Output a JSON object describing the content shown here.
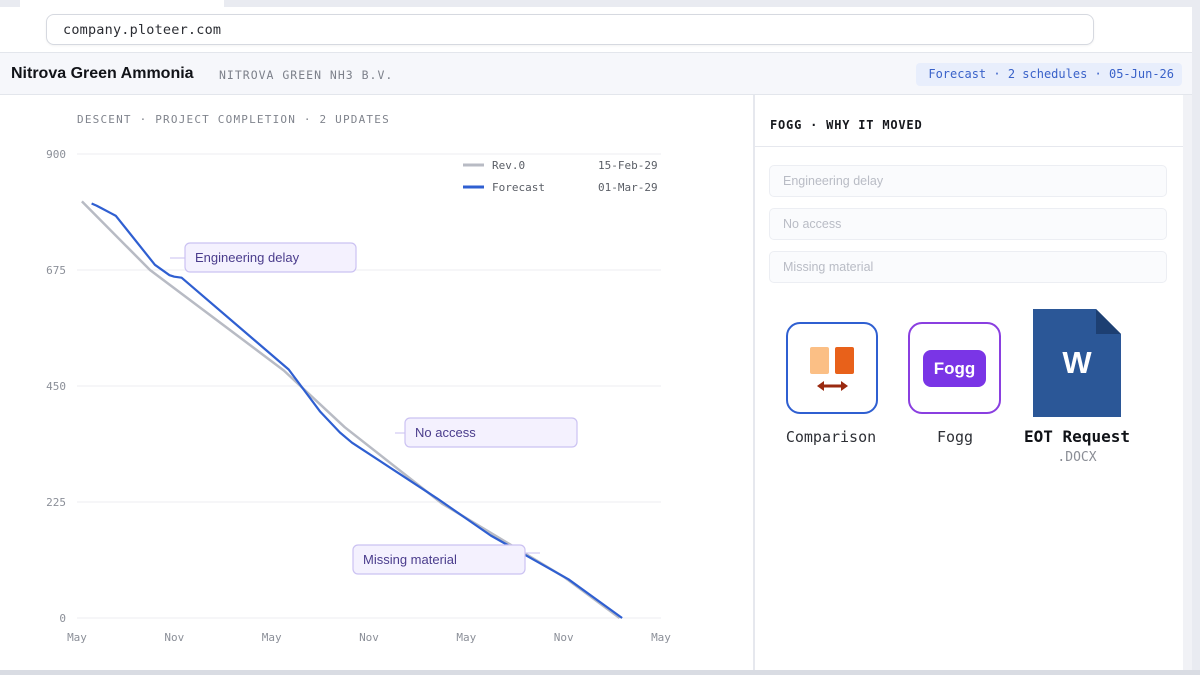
{
  "browser": {
    "url": "company.ploteer.com"
  },
  "header": {
    "title": "Nitrova Green Ammonia",
    "subtitle": "NITROVA GREEN NH3 B.V.",
    "status": "Forecast · 2 schedules · 05-Jun-26"
  },
  "chart_data": {
    "type": "line",
    "title": "DESCENT · PROJECT COMPLETION · 2 UPDATES",
    "ylim": [
      0,
      900
    ],
    "yticks": [
      "900",
      "675",
      "450",
      "225",
      "0"
    ],
    "xticks": [
      "May",
      "Nov",
      "May",
      "Nov",
      "May",
      "Nov",
      "May"
    ],
    "grid": true,
    "legend_position": "top-right",
    "legend": [
      {
        "name": "Rev.0",
        "date": "15-Feb-29",
        "color": "#b8bbc4"
      },
      {
        "name": "Forecast",
        "date": "01-Mar-29",
        "color": "#2f5fd1"
      }
    ],
    "series": [
      {
        "name": "Rev.0",
        "color": "#b8bbc4",
        "points": [
          [
            0.2,
            808
          ],
          [
            3.0,
            675
          ],
          [
            8.5,
            480
          ],
          [
            11.0,
            370
          ],
          [
            15.0,
            222
          ],
          [
            20.0,
            80
          ],
          [
            22.3,
            0
          ]
        ]
      },
      {
        "name": "Forecast",
        "color": "#2f5fd1",
        "points": [
          [
            0.6,
            804
          ],
          [
            0.8,
            800
          ],
          [
            1.0,
            795
          ],
          [
            1.4,
            785
          ],
          [
            1.6,
            780
          ],
          [
            3.2,
            685
          ],
          [
            3.8,
            665
          ],
          [
            4.0,
            662
          ],
          [
            4.3,
            660
          ],
          [
            8.7,
            482
          ],
          [
            10.0,
            400
          ],
          [
            10.8,
            360
          ],
          [
            11.3,
            340
          ],
          [
            14.8,
            232
          ],
          [
            17.0,
            160
          ],
          [
            20.2,
            75
          ],
          [
            22.4,
            0
          ]
        ]
      }
    ],
    "annotations": [
      "Engineering delay",
      "No access",
      "Missing material"
    ]
  },
  "panel": {
    "title": "FOGG · WHY IT MOVED",
    "reasons": [
      "Engineering delay",
      "No access",
      "Missing material"
    ],
    "apps": [
      {
        "label": "Comparison",
        "icon": "comparison-icon"
      },
      {
        "label": "Fogg",
        "icon": "fogg-icon",
        "badge": "Fogg"
      },
      {
        "label": "EOT Request",
        "sublabel": ".DOCX",
        "icon": "word-document-icon",
        "glyph": "W"
      }
    ]
  }
}
